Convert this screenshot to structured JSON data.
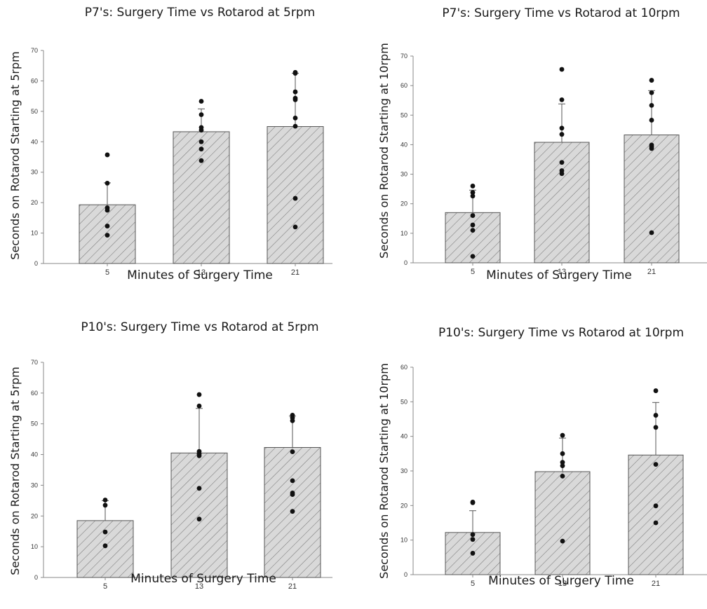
{
  "chart_data": [
    {
      "type": "bar",
      "title": "P7's: Surgery Time vs Rotarod at 5rpm",
      "xlabel": "Minutes of Surgery Time",
      "ylabel": "Seconds on Rotarod Starting at 5rpm",
      "categories": [
        "5",
        "13",
        "21"
      ],
      "values": [
        19.3,
        43.3,
        45.0
      ],
      "error_upper": [
        26.5,
        50.8,
        62.5
      ],
      "points": [
        [
          35.7,
          26.4,
          18.3,
          17.5,
          12.3,
          9.3
        ],
        [
          53.3,
          48.9,
          44.7,
          43.8,
          40.0,
          37.6,
          33.8
        ],
        [
          62.8,
          62.5,
          56.4,
          54.3,
          53.8,
          47.8,
          45.1,
          21.4,
          12.0
        ]
      ],
      "ylim": [
        0,
        70
      ],
      "yticks": [
        0,
        10,
        20,
        30,
        40,
        50,
        60,
        70
      ]
    },
    {
      "type": "bar",
      "title": "P7's: Surgery Time vs Rotarod at 10rpm",
      "xlabel": "Minutes of Surgery Time",
      "ylabel": "Seconds on Rotarod Starting at 10rpm",
      "categories": [
        "5",
        "13",
        "21"
      ],
      "values": [
        17.0,
        40.8,
        43.3
      ],
      "error_upper": [
        24.6,
        53.8,
        58.3
      ],
      "points": [
        [
          26.0,
          23.8,
          22.6,
          16.0,
          12.8,
          11.0,
          2.2
        ],
        [
          65.5,
          55.2,
          45.6,
          43.5,
          34.0,
          31.2,
          30.2
        ],
        [
          61.8,
          57.6,
          53.3,
          48.3,
          39.9,
          39.3,
          38.7,
          10.2
        ]
      ],
      "ylim": [
        0,
        70
      ],
      "yticks": [
        0,
        10,
        20,
        30,
        40,
        50,
        60,
        70
      ]
    },
    {
      "type": "bar",
      "title": "P10's: Surgery Time vs Rotarod at 5rpm",
      "xlabel": "Minutes of Surgery Time",
      "ylabel": "Seconds on Rotarod Starting at 5rpm",
      "categories": [
        "5",
        "13",
        "21"
      ],
      "values": [
        18.5,
        40.5,
        42.3
      ],
      "error_upper": [
        25.0,
        55.0,
        52.5
      ],
      "points": [
        [
          25.2,
          23.5,
          14.8,
          10.3
        ],
        [
          59.5,
          55.8,
          41.0,
          40.2,
          39.6,
          29.0,
          19.0
        ],
        [
          52.8,
          52.0,
          51.0,
          40.9,
          31.5,
          27.5,
          27.0,
          21.5
        ]
      ],
      "ylim": [
        0,
        70
      ],
      "yticks": [
        0,
        10,
        20,
        30,
        40,
        50,
        60,
        70
      ]
    },
    {
      "type": "bar",
      "title": "P10's: Surgery Time vs Rotarod at 10rpm",
      "xlabel": "Minutes of Surgery Time",
      "ylabel": "Seconds on Rotarod Starting at 10rpm",
      "categories": [
        "5",
        "13",
        "21"
      ],
      "values": [
        12.2,
        29.8,
        34.6
      ],
      "error_upper": [
        18.5,
        39.5,
        49.8
      ],
      "points": [
        [
          21.0,
          20.8,
          11.6,
          10.2,
          6.2
        ],
        [
          40.3,
          35.0,
          32.5,
          31.5,
          28.5,
          9.7
        ],
        [
          53.2,
          46.1,
          42.6,
          31.9,
          19.9,
          15.0
        ]
      ],
      "ylim": [
        0,
        60
      ],
      "yticks": [
        0,
        10,
        20,
        30,
        40,
        50,
        60
      ]
    }
  ]
}
